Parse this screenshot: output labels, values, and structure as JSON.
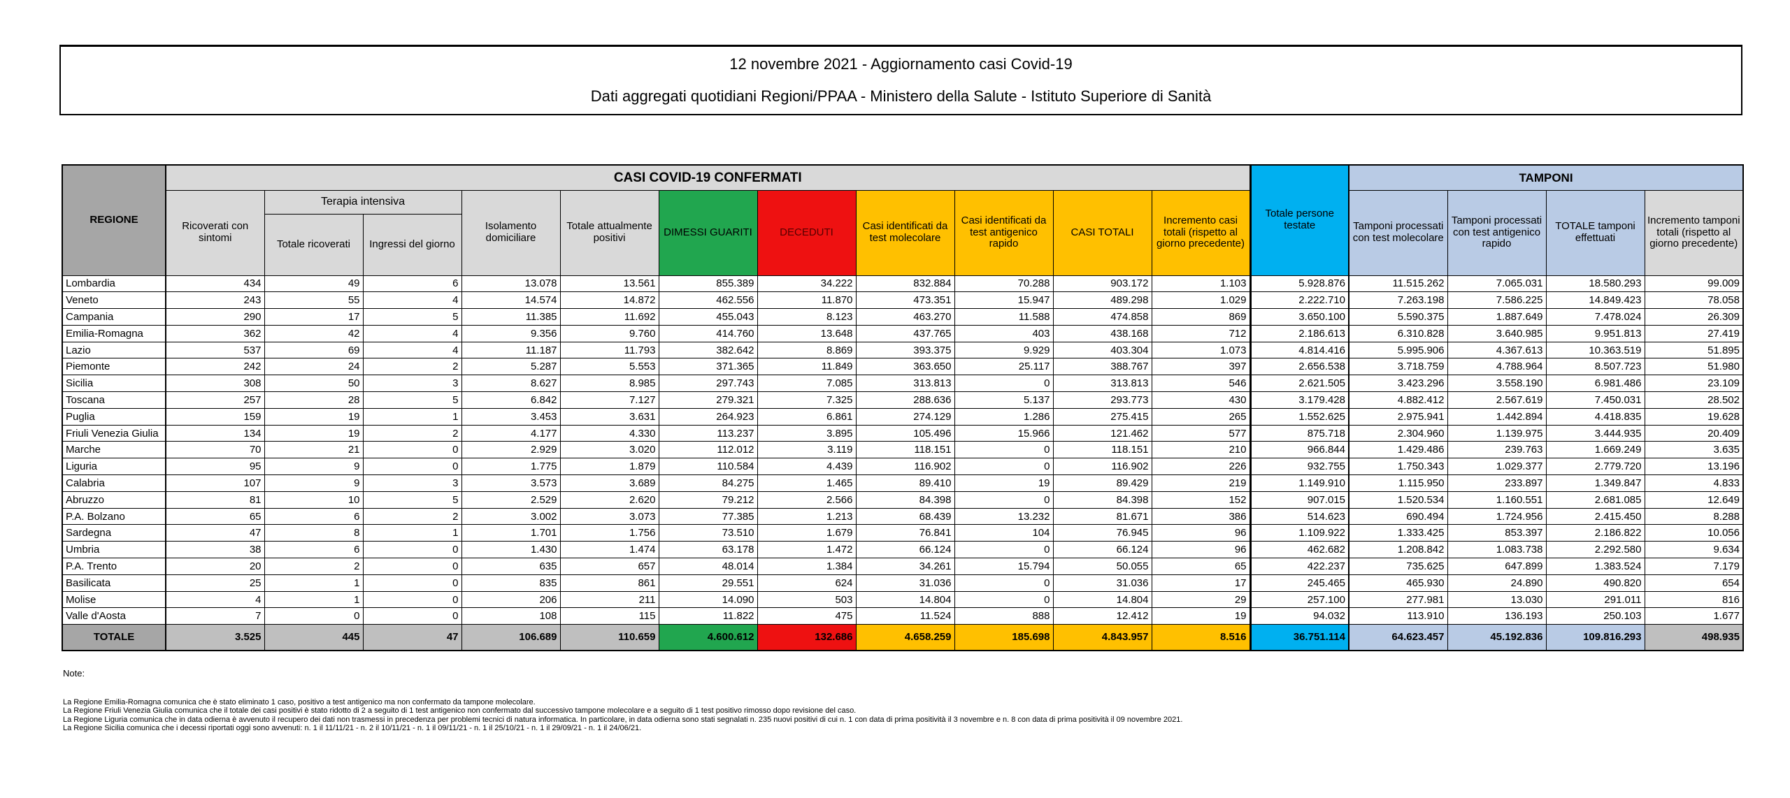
{
  "title": {
    "line1": "12 novembre 2021 - Aggiornamento casi Covid-19",
    "line2": "Dati aggregati quotidiani Regioni/PPAA - Ministero della Salute - Istituto Superiore di Sanità"
  },
  "table": {
    "group_headers": {
      "regione": "REGIONE",
      "casi_confermati": "CASI COVID-19 CONFERMATI",
      "terapia_intensiva": "Terapia intensiva",
      "tamponi": "TAMPONI"
    },
    "column_headers": {
      "ricoverati_con_sintomi": "Ricoverati con sintomi",
      "totale_ricoverati": "Totale ricoverati",
      "ingressi_del_giorno": "Ingressi del giorno",
      "isolamento_domiciliare": "Isolamento domiciliare",
      "totale_attualmente_positivi": "Totale attualmente positivi",
      "dimessi_guariti": "DIMESSI GUARITI",
      "deceduti": "DECEDUTI",
      "casi_test_molecolare": "Casi identificati da test molecolare",
      "casi_test_antigenico": "Casi identificati da test antigenico rapido",
      "casi_totali": "CASI TOTALI",
      "incremento_casi": "Incremento casi totali (rispetto al giorno precedente)",
      "totale_persone_testate": "Totale persone testate",
      "tamponi_molecolare": "Tamponi processati con test molecolare",
      "tamponi_antigenico": "Tamponi processati con test antigenico rapido",
      "totale_tamponi": "TOTALE tamponi effettuati",
      "incremento_tamponi": "Incremento tamponi totali (rispetto al giorno precedente)"
    },
    "rows": [
      {
        "region": "Lombardia",
        "values": [
          "434",
          "49",
          "6",
          "13.078",
          "13.561",
          "855.389",
          "34.222",
          "832.884",
          "70.288",
          "903.172",
          "1.103",
          "5.928.876",
          "11.515.262",
          "7.065.031",
          "18.580.293",
          "99.009"
        ]
      },
      {
        "region": "Veneto",
        "values": [
          "243",
          "55",
          "4",
          "14.574",
          "14.872",
          "462.556",
          "11.870",
          "473.351",
          "15.947",
          "489.298",
          "1.029",
          "2.222.710",
          "7.263.198",
          "7.586.225",
          "14.849.423",
          "78.058"
        ]
      },
      {
        "region": "Campania",
        "values": [
          "290",
          "17",
          "5",
          "11.385",
          "11.692",
          "455.043",
          "8.123",
          "463.270",
          "11.588",
          "474.858",
          "869",
          "3.650.100",
          "5.590.375",
          "1.887.649",
          "7.478.024",
          "26.309"
        ]
      },
      {
        "region": "Emilia-Romagna",
        "values": [
          "362",
          "42",
          "4",
          "9.356",
          "9.760",
          "414.760",
          "13.648",
          "437.765",
          "403",
          "438.168",
          "712",
          "2.186.613",
          "6.310.828",
          "3.640.985",
          "9.951.813",
          "27.419"
        ]
      },
      {
        "region": "Lazio",
        "values": [
          "537",
          "69",
          "4",
          "11.187",
          "11.793",
          "382.642",
          "8.869",
          "393.375",
          "9.929",
          "403.304",
          "1.073",
          "4.814.416",
          "5.995.906",
          "4.367.613",
          "10.363.519",
          "51.895"
        ]
      },
      {
        "region": "Piemonte",
        "values": [
          "242",
          "24",
          "2",
          "5.287",
          "5.553",
          "371.365",
          "11.849",
          "363.650",
          "25.117",
          "388.767",
          "397",
          "2.656.538",
          "3.718.759",
          "4.788.964",
          "8.507.723",
          "51.980"
        ]
      },
      {
        "region": "Sicilia",
        "values": [
          "308",
          "50",
          "3",
          "8.627",
          "8.985",
          "297.743",
          "7.085",
          "313.813",
          "0",
          "313.813",
          "546",
          "2.621.505",
          "3.423.296",
          "3.558.190",
          "6.981.486",
          "23.109"
        ]
      },
      {
        "region": "Toscana",
        "values": [
          "257",
          "28",
          "5",
          "6.842",
          "7.127",
          "279.321",
          "7.325",
          "288.636",
          "5.137",
          "293.773",
          "430",
          "3.179.428",
          "4.882.412",
          "2.567.619",
          "7.450.031",
          "28.502"
        ]
      },
      {
        "region": "Puglia",
        "values": [
          "159",
          "19",
          "1",
          "3.453",
          "3.631",
          "264.923",
          "6.861",
          "274.129",
          "1.286",
          "275.415",
          "265",
          "1.552.625",
          "2.975.941",
          "1.442.894",
          "4.418.835",
          "19.628"
        ]
      },
      {
        "region": "Friuli Venezia Giulia",
        "values": [
          "134",
          "19",
          "2",
          "4.177",
          "4.330",
          "113.237",
          "3.895",
          "105.496",
          "15.966",
          "121.462",
          "577",
          "875.718",
          "2.304.960",
          "1.139.975",
          "3.444.935",
          "20.409"
        ]
      },
      {
        "region": "Marche",
        "values": [
          "70",
          "21",
          "0",
          "2.929",
          "3.020",
          "112.012",
          "3.119",
          "118.151",
          "0",
          "118.151",
          "210",
          "966.844",
          "1.429.486",
          "239.763",
          "1.669.249",
          "3.635"
        ]
      },
      {
        "region": "Liguria",
        "values": [
          "95",
          "9",
          "0",
          "1.775",
          "1.879",
          "110.584",
          "4.439",
          "116.902",
          "0",
          "116.902",
          "226",
          "932.755",
          "1.750.343",
          "1.029.377",
          "2.779.720",
          "13.196"
        ]
      },
      {
        "region": "Calabria",
        "values": [
          "107",
          "9",
          "3",
          "3.573",
          "3.689",
          "84.275",
          "1.465",
          "89.410",
          "19",
          "89.429",
          "219",
          "1.149.910",
          "1.115.950",
          "233.897",
          "1.349.847",
          "4.833"
        ]
      },
      {
        "region": "Abruzzo",
        "values": [
          "81",
          "10",
          "5",
          "2.529",
          "2.620",
          "79.212",
          "2.566",
          "84.398",
          "0",
          "84.398",
          "152",
          "907.015",
          "1.520.534",
          "1.160.551",
          "2.681.085",
          "12.649"
        ]
      },
      {
        "region": "P.A. Bolzano",
        "values": [
          "65",
          "6",
          "2",
          "3.002",
          "3.073",
          "77.385",
          "1.213",
          "68.439",
          "13.232",
          "81.671",
          "386",
          "514.623",
          "690.494",
          "1.724.956",
          "2.415.450",
          "8.288"
        ]
      },
      {
        "region": "Sardegna",
        "values": [
          "47",
          "8",
          "1",
          "1.701",
          "1.756",
          "73.510",
          "1.679",
          "76.841",
          "104",
          "76.945",
          "96",
          "1.109.922",
          "1.333.425",
          "853.397",
          "2.186.822",
          "10.056"
        ]
      },
      {
        "region": "Umbria",
        "values": [
          "38",
          "6",
          "0",
          "1.430",
          "1.474",
          "63.178",
          "1.472",
          "66.124",
          "0",
          "66.124",
          "96",
          "462.682",
          "1.208.842",
          "1.083.738",
          "2.292.580",
          "9.634"
        ]
      },
      {
        "region": "P.A. Trento",
        "values": [
          "20",
          "2",
          "0",
          "635",
          "657",
          "48.014",
          "1.384",
          "34.261",
          "15.794",
          "50.055",
          "65",
          "422.237",
          "735.625",
          "647.899",
          "1.383.524",
          "7.179"
        ]
      },
      {
        "region": "Basilicata",
        "values": [
          "25",
          "1",
          "0",
          "835",
          "861",
          "29.551",
          "624",
          "31.036",
          "0",
          "31.036",
          "17",
          "245.465",
          "465.930",
          "24.890",
          "490.820",
          "654"
        ]
      },
      {
        "region": "Molise",
        "values": [
          "4",
          "1",
          "0",
          "206",
          "211",
          "14.090",
          "503",
          "14.804",
          "0",
          "14.804",
          "29",
          "257.100",
          "277.981",
          "13.030",
          "291.011",
          "816"
        ]
      },
      {
        "region": "Valle d'Aosta",
        "values": [
          "7",
          "0",
          "0",
          "108",
          "115",
          "11.822",
          "475",
          "11.524",
          "888",
          "12.412",
          "19",
          "94.032",
          "113.910",
          "136.193",
          "250.103",
          "1.677"
        ]
      }
    ],
    "total_row": {
      "region": "TOTALE",
      "values": [
        "3.525",
        "445",
        "47",
        "106.689",
        "110.659",
        "4.600.612",
        "132.686",
        "4.658.259",
        "185.698",
        "4.843.957",
        "8.516",
        "36.751.114",
        "64.623.457",
        "45.192.836",
        "109.816.293",
        "498.935"
      ]
    }
  },
  "notes": {
    "title": "Note:",
    "lines": [
      "La Regione Emilia-Romagna  comunica che è stato eliminato 1 caso, positivo a test antigenico ma non confermato da tampone molecolare.",
      "La Regione Friuli Venezia Giulia comunica che il totale dei casi positivi è stato ridotto di 2 a seguito di 1 test antigenico non confermato dal successivo tampone molecolare e a seguito di 1 test positivo rimosso dopo revisione del caso.",
      "La Regione Liguria comunica che in data odierna è avvenuto il recupero dei dati non trasmessi in precedenza per problemi tecnici di natura informatica. In particolare, in data odierna sono stati segnalati n. 235 nuovi positivi di cui n. 1 con data di prima positività il 3 novembre e n. 8 con data di prima positività il 09 novembre 2021.",
      "La Regione Sicilia comunica che i decessi riportati oggi sono avvenuti: n. 1 il 11/11/21 - n. 2 il 10/11/21 - n. 1 il 09/11/21 - n. 1 il 25/10/21 - n. 1 il 29/09/21 - n. 1 il 24/06/21."
    ]
  },
  "colors": {
    "green": "#21A64F",
    "red": "#EE1111",
    "gold": "#FFC000",
    "cyan": "#00B0F0",
    "light_blue": "#B9CBE5",
    "header_gray": "#D9D9D9",
    "dark_gray": "#A6A6A6",
    "total_gray": "#BFBFBF"
  }
}
